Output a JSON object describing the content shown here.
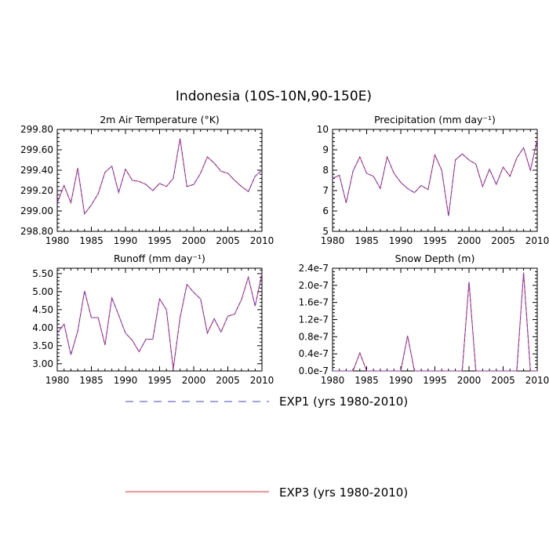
{
  "figure": {
    "title": "Indonesia (10S-10N,90-150E)"
  },
  "colors": {
    "exp1": "#4040ff",
    "exp3": "#ff2020"
  },
  "legend": {
    "exp1_label": "EXP1 (yrs 1980-2010)",
    "exp3_label": "EXP3 (yrs 1980-2010)"
  },
  "chart_data": [
    {
      "type": "line",
      "title": "2m Air Temperature (°K)",
      "xlim": [
        1980,
        2010
      ],
      "ylim": [
        298.8,
        299.8
      ],
      "xticks": [
        "1980",
        "1985",
        "1990",
        "1995",
        "2000",
        "2005",
        "2010"
      ],
      "yticks": [
        "298.80",
        "299.00",
        "299.20",
        "299.40",
        "299.60",
        "299.80"
      ],
      "x": [
        1980,
        1981,
        1982,
        1983,
        1984,
        1985,
        1986,
        1987,
        1988,
        1989,
        1990,
        1991,
        1992,
        1993,
        1994,
        1995,
        1996,
        1997,
        1998,
        1999,
        2000,
        2001,
        2002,
        2003,
        2004,
        2005,
        2006,
        2007,
        2008,
        2009,
        2010
      ],
      "series": [
        {
          "name": "EXP1 (yrs 1980-2010)",
          "values": [
            299.08,
            299.25,
            299.08,
            299.42,
            298.97,
            299.06,
            299.17,
            299.38,
            299.44,
            299.18,
            299.41,
            299.3,
            299.29,
            299.26,
            299.2,
            299.27,
            299.24,
            299.32,
            299.71,
            299.24,
            299.26,
            299.37,
            299.53,
            299.47,
            299.39,
            299.37,
            299.3,
            299.24,
            299.19,
            299.34,
            299.4
          ]
        },
        {
          "name": "EXP3 (yrs 1980-2010)",
          "values": [
            299.08,
            299.25,
            299.08,
            299.42,
            298.97,
            299.06,
            299.17,
            299.38,
            299.44,
            299.18,
            299.41,
            299.3,
            299.29,
            299.26,
            299.2,
            299.27,
            299.24,
            299.32,
            299.71,
            299.24,
            299.26,
            299.37,
            299.53,
            299.47,
            299.39,
            299.37,
            299.3,
            299.24,
            299.19,
            299.34,
            299.4
          ]
        }
      ]
    },
    {
      "type": "line",
      "title": "Precipitation (mm day⁻¹)",
      "xlim": [
        1980,
        2010
      ],
      "ylim": [
        5,
        10
      ],
      "xticks": [
        "1980",
        "1985",
        "1990",
        "1995",
        "2000",
        "2005",
        "2010"
      ],
      "yticks": [
        "5",
        "6",
        "7",
        "8",
        "9",
        "10"
      ],
      "x": [
        1980,
        1981,
        1982,
        1983,
        1984,
        1985,
        1986,
        1987,
        1988,
        1989,
        1990,
        1991,
        1992,
        1993,
        1994,
        1995,
        1996,
        1997,
        1998,
        1999,
        2000,
        2001,
        2002,
        2003,
        2004,
        2005,
        2006,
        2007,
        2008,
        2009,
        2010
      ],
      "series": [
        {
          "name": "EXP1 (yrs 1980-2010)",
          "values": [
            7.6,
            7.75,
            6.4,
            7.95,
            8.65,
            7.85,
            7.7,
            7.1,
            8.65,
            7.85,
            7.4,
            7.1,
            6.9,
            7.25,
            7.05,
            8.75,
            8.0,
            5.75,
            8.5,
            8.8,
            8.5,
            8.3,
            7.2,
            8.05,
            7.3,
            8.15,
            7.7,
            8.6,
            9.1,
            8.0,
            9.5
          ]
        },
        {
          "name": "EXP3 (yrs 1980-2010)",
          "values": [
            7.6,
            7.75,
            6.4,
            7.95,
            8.65,
            7.85,
            7.7,
            7.1,
            8.65,
            7.85,
            7.4,
            7.1,
            6.9,
            7.25,
            7.05,
            8.75,
            8.0,
            5.75,
            8.5,
            8.8,
            8.5,
            8.3,
            7.2,
            8.05,
            7.3,
            8.15,
            7.7,
            8.6,
            9.1,
            8.0,
            9.5
          ]
        }
      ]
    },
    {
      "type": "line",
      "title": "Runoff (mm day⁻¹)",
      "xlim": [
        1980,
        2010
      ],
      "ylim": [
        2.8,
        5.65
      ],
      "xticks": [
        "1980",
        "1985",
        "1990",
        "1995",
        "2000",
        "2005",
        "2010"
      ],
      "yticks": [
        "3.00",
        "3.50",
        "4.00",
        "4.50",
        "5.00",
        "5.50"
      ],
      "x": [
        1980,
        1981,
        1982,
        1983,
        1984,
        1985,
        1986,
        1987,
        1988,
        1989,
        1990,
        1991,
        1992,
        1993,
        1994,
        1995,
        1996,
        1997,
        1998,
        1999,
        2000,
        2001,
        2002,
        2003,
        2004,
        2005,
        2006,
        2007,
        2008,
        2009,
        2010
      ],
      "series": [
        {
          "name": "EXP1 (yrs 1980-2010)",
          "values": [
            3.85,
            4.1,
            3.25,
            3.9,
            5.02,
            4.28,
            4.28,
            3.52,
            4.83,
            4.35,
            3.85,
            3.65,
            3.33,
            3.68,
            3.68,
            4.8,
            4.5,
            2.85,
            4.28,
            5.2,
            4.98,
            4.8,
            3.85,
            4.25,
            3.88,
            4.32,
            4.38,
            4.78,
            5.4,
            4.6,
            5.5
          ]
        },
        {
          "name": "EXP3 (yrs 1980-2010)",
          "values": [
            3.85,
            4.1,
            3.25,
            3.9,
            5.02,
            4.28,
            4.28,
            3.52,
            4.83,
            4.35,
            3.85,
            3.65,
            3.33,
            3.68,
            3.68,
            4.8,
            4.5,
            2.85,
            4.28,
            5.2,
            4.98,
            4.8,
            3.85,
            4.25,
            3.88,
            4.32,
            4.38,
            4.78,
            5.4,
            4.6,
            5.5
          ]
        }
      ]
    },
    {
      "type": "line",
      "title": "Snow Depth (m)",
      "xlim": [
        1980,
        2010
      ],
      "ylim": [
        0,
        2.4e-07
      ],
      "xticks": [
        "1980",
        "1985",
        "1990",
        "1995",
        "2000",
        "2005",
        "2010"
      ],
      "yticks": [
        "0.0e-7",
        "0.4e-7",
        "0.8e-7",
        "1.2e-7",
        "1.6e-7",
        "2.0e-7",
        "2.4e-7"
      ],
      "x": [
        1980,
        1981,
        1982,
        1983,
        1984,
        1985,
        1986,
        1987,
        1988,
        1989,
        1990,
        1991,
        1992,
        1993,
        1994,
        1995,
        1996,
        1997,
        1998,
        1999,
        2000,
        2001,
        2002,
        2003,
        2004,
        2005,
        2006,
        2007,
        2008,
        2009,
        2010
      ],
      "series": [
        {
          "name": "EXP1 (yrs 1980-2010)",
          "values": [
            0,
            0,
            0,
            0,
            4.2e-08,
            0,
            0,
            0,
            0,
            0,
            0,
            8.2e-08,
            0,
            0,
            0,
            0,
            0,
            0,
            0,
            0,
            2.08e-07,
            0,
            0,
            0,
            0,
            0,
            0,
            0,
            2.3e-07,
            0,
            0
          ]
        },
        {
          "name": "EXP3 (yrs 1980-2010)",
          "values": [
            0,
            0,
            0,
            0,
            4.2e-08,
            0,
            0,
            0,
            0,
            0,
            0,
            8.2e-08,
            0,
            0,
            0,
            0,
            0,
            0,
            0,
            0,
            2.08e-07,
            0,
            0,
            0,
            0,
            0,
            0,
            0,
            2.3e-07,
            0,
            0
          ]
        }
      ]
    }
  ]
}
